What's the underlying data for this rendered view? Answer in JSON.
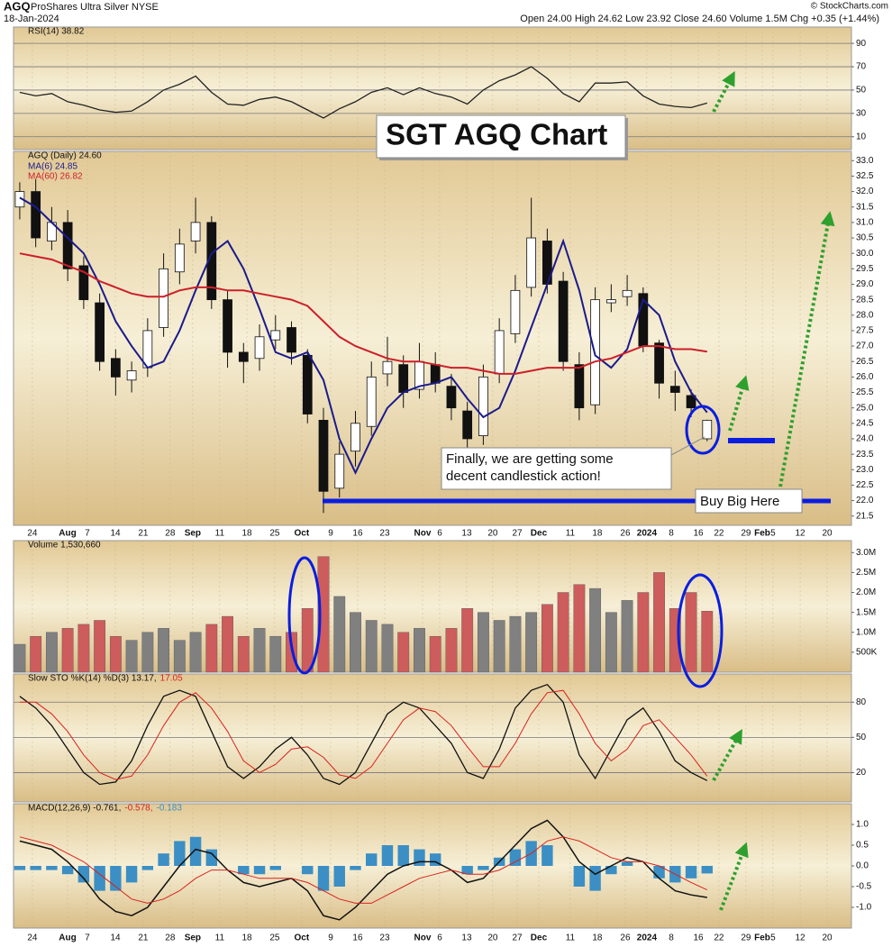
{
  "header": {
    "symbol": "AGQ",
    "name": "ProShares Ultra Silver NYSE",
    "date": "18-Jan-2024",
    "quote": "Open 24.00  High 24.62  Low 23.92  Close 24.60  Volume 1.5M  Chg +0.35 (+1.44%)",
    "credit": "© StockCharts.com"
  },
  "annotations": {
    "box_title": "SGT AGQ Chart",
    "note": [
      "Finally, we are getting some",
      "decent candlestick action!"
    ],
    "buy": "Buy Big Here"
  },
  "chart_data": [
    {
      "type": "line",
      "title": "RSI(14) 38.82",
      "grid": true,
      "ylim": [
        -1,
        104
      ],
      "yticks": [
        10,
        30,
        50,
        70,
        90
      ],
      "series": [
        {
          "color": "#222222",
          "values": [
            48,
            45,
            47,
            40,
            37,
            33,
            31,
            32,
            40,
            50,
            55,
            62,
            48,
            38,
            37,
            42,
            44,
            40,
            33,
            26,
            34,
            40,
            48,
            52,
            46,
            52,
            47,
            44,
            38,
            50,
            58,
            63,
            70,
            60,
            47,
            40,
            56,
            56,
            57,
            45,
            38,
            36,
            35,
            38.82
          ]
        }
      ]
    },
    {
      "type": "candlestick",
      "title": "AGQ (Daily) 24.60",
      "up_color": "#ffffff",
      "down_color": "#111111",
      "open": [
        31.5,
        32.0,
        30.4,
        31.0,
        29.6,
        28.4,
        26.6,
        25.9,
        26.3,
        27.6,
        29.4,
        30.4,
        31.0,
        28.5,
        26.8,
        26.6,
        27.2,
        27.6,
        26.7,
        24.6,
        22.4,
        23.6,
        24.4,
        26.1,
        26.4,
        25.6,
        26.4,
        25.7,
        24.9,
        24.1,
        26.1,
        27.4,
        28.9,
        30.4,
        29.1,
        26.4,
        25.1,
        28.4,
        28.6,
        28.7,
        27.1,
        25.7,
        25.4,
        24.0
      ],
      "high": [
        32.3,
        32.4,
        31.5,
        31.4,
        29.9,
        28.7,
        26.9,
        26.5,
        27.9,
        30.0,
        30.8,
        31.8,
        31.2,
        28.8,
        27.1,
        27.7,
        28.0,
        27.8,
        26.9,
        25.0,
        23.9,
        24.9,
        26.5,
        27.3,
        26.7,
        27.1,
        26.8,
        26.1,
        25.2,
        26.4,
        27.9,
        29.3,
        31.8,
        30.8,
        29.4,
        26.8,
        28.9,
        29.0,
        29.3,
        28.9,
        27.2,
        26.2,
        25.6,
        24.62
      ],
      "low": [
        31.1,
        30.2,
        30.1,
        29.1,
        28.2,
        26.2,
        25.4,
        25.5,
        26.0,
        27.3,
        29.0,
        30.0,
        28.2,
        26.3,
        25.8,
        26.2,
        26.9,
        26.4,
        24.5,
        21.6,
        22.1,
        23.1,
        24.1,
        25.7,
        25.0,
        25.3,
        25.5,
        24.6,
        23.6,
        23.8,
        25.8,
        27.1,
        28.6,
        28.7,
        26.2,
        24.6,
        24.8,
        28.1,
        28.3,
        26.8,
        25.3,
        24.9,
        24.7,
        23.92
      ],
      "close": [
        32.0,
        30.5,
        31.0,
        29.5,
        28.5,
        26.5,
        26.0,
        26.2,
        27.5,
        29.5,
        30.3,
        31.0,
        28.5,
        26.8,
        26.5,
        27.3,
        27.5,
        26.8,
        24.8,
        22.3,
        23.5,
        24.5,
        26.0,
        26.5,
        25.5,
        26.5,
        25.8,
        25.0,
        24.0,
        26.0,
        27.5,
        28.8,
        30.5,
        29.0,
        26.5,
        25.0,
        28.5,
        28.5,
        28.8,
        27.0,
        25.8,
        25.5,
        25.0,
        24.6
      ],
      "series": [
        {
          "name": "MA(6) 24.85",
          "color": "#1a1a8c",
          "values": [
            31.8,
            31.5,
            31.0,
            30.5,
            30.0,
            29.0,
            27.8,
            27.0,
            26.3,
            26.5,
            27.5,
            28.8,
            30.0,
            30.4,
            29.5,
            28.2,
            26.8,
            26.6,
            26.8,
            25.9,
            24.0,
            22.9,
            24.0,
            25.0,
            25.5,
            25.7,
            25.8,
            26.0,
            25.3,
            24.7,
            25.0,
            26.2,
            27.6,
            29.0,
            30.4,
            28.8,
            26.7,
            26.3,
            26.9,
            28.5,
            28.0,
            26.5,
            25.5,
            24.85
          ]
        },
        {
          "name": "MA(60) 26.82",
          "color": "#cc1f2a",
          "values": [
            30.0,
            29.9,
            29.8,
            29.6,
            29.4,
            29.1,
            28.9,
            28.7,
            28.6,
            28.6,
            28.8,
            28.9,
            28.9,
            28.8,
            28.8,
            28.7,
            28.6,
            28.5,
            28.3,
            27.8,
            27.3,
            27.0,
            26.8,
            26.6,
            26.5,
            26.5,
            26.4,
            26.3,
            26.3,
            26.2,
            26.1,
            26.1,
            26.2,
            26.3,
            26.3,
            26.3,
            26.5,
            26.6,
            26.8,
            27.0,
            27.0,
            26.9,
            26.9,
            26.82
          ]
        }
      ],
      "ylim": [
        21.2,
        33.3
      ],
      "yticks": [
        21.5,
        {
          "value": 22,
          "label": "22.0"
        },
        22.5,
        {
          "value": 23,
          "label": "23.0"
        },
        23.5,
        {
          "value": 24,
          "label": "24.0"
        },
        24.5,
        {
          "value": 25,
          "label": "25.0"
        },
        25.5,
        {
          "value": 26,
          "label": "26.0"
        },
        26.5,
        {
          "value": 27,
          "label": "27.0"
        },
        27.5,
        {
          "value": 28,
          "label": "28.0"
        },
        28.5,
        {
          "value": 29,
          "label": "29.0"
        },
        29.5,
        {
          "value": 30,
          "label": "30.0"
        },
        30.5,
        {
          "value": 31,
          "label": "31.0"
        },
        31.5,
        {
          "value": 32,
          "label": "32.0"
        },
        32.5,
        {
          "value": 33,
          "label": "33.0"
        }
      ],
      "xlim": [
        -0.39,
        52.03
      ],
      "xticks": [
        {
          "value": 0.79,
          "label": "24"
        },
        {
          "value": 2.99,
          "label": "Aug"
        },
        {
          "value": 4.23,
          "label": "7"
        },
        {
          "value": 5.98,
          "label": "14"
        },
        {
          "value": 7.72,
          "label": "21"
        },
        {
          "value": 9.41,
          "label": "28"
        },
        {
          "value": 10.82,
          "label": "Sep"
        },
        {
          "value": 12.51,
          "label": "11"
        },
        {
          "value": 14.21,
          "label": "18"
        },
        {
          "value": 15.95,
          "label": "25"
        },
        {
          "value": 17.64,
          "label": "Oct"
        },
        {
          "value": 19.45,
          "label": "9"
        },
        {
          "value": 21.14,
          "label": "16"
        },
        {
          "value": 22.83,
          "label": "23"
        },
        {
          "value": 25.2,
          "label": "Nov"
        },
        {
          "value": 26.27,
          "label": "6"
        },
        {
          "value": 27.96,
          "label": "13"
        },
        {
          "value": 29.59,
          "label": "20"
        },
        {
          "value": 31.12,
          "label": "27"
        },
        {
          "value": 32.47,
          "label": "Dec"
        },
        {
          "value": 34.44,
          "label": "11"
        },
        {
          "value": 36.13,
          "label": "18"
        },
        {
          "value": 37.88,
          "label": "26"
        },
        {
          "value": 39.23,
          "label": "2024"
        },
        {
          "value": 40.76,
          "label": "8"
        },
        {
          "value": 42.45,
          "label": "16"
        },
        {
          "value": 43.74,
          "label": "22"
        },
        {
          "value": 45.43,
          "label": "29"
        },
        {
          "value": 46.45,
          "label": "Feb"
        },
        {
          "value": 47.12,
          "label": "5"
        },
        {
          "value": 48.82,
          "label": "12"
        },
        {
          "value": 50.51,
          "label": "20"
        }
      ]
    },
    {
      "type": "bar",
      "title": "Volume 1,530,660",
      "up_color": "#808080",
      "down_color": "#cd5c5c",
      "ylim": [
        0,
        3300000
      ],
      "yticks": [
        {
          "value": 500000,
          "label": "500K"
        },
        {
          "value": 1000000,
          "label": "1.0M"
        },
        {
          "value": 1500000,
          "label": "1.5M"
        },
        {
          "value": 2000000,
          "label": "2.0M"
        },
        {
          "value": 2500000,
          "label": "2.5M"
        },
        {
          "value": 3000000,
          "label": "3.0M"
        }
      ],
      "values": [
        700000,
        900000,
        1000000,
        1100000,
        1200000,
        1300000,
        900000,
        800000,
        1000000,
        1100000,
        800000,
        1000000,
        1200000,
        1400000,
        900000,
        1100000,
        900000,
        1000000,
        1600000,
        2900000,
        1900000,
        1500000,
        1300000,
        1200000,
        1000000,
        1100000,
        900000,
        1100000,
        1600000,
        1500000,
        1300000,
        1400000,
        1500000,
        1700000,
        2000000,
        2200000,
        2100000,
        1500000,
        1800000,
        2000000,
        2500000,
        1600000,
        2000000,
        1530660
      ]
    },
    {
      "type": "line",
      "title": "Slow STO %K(14) %D(3) 13.17,",
      "title_extra": "17.05",
      "grid": true,
      "ylim": [
        -5,
        104
      ],
      "yticks": [
        20,
        50,
        80
      ],
      "series": [
        {
          "color": "#111111",
          "values": [
            85,
            75,
            60,
            40,
            20,
            10,
            12,
            30,
            60,
            85,
            90,
            85,
            55,
            25,
            15,
            25,
            40,
            50,
            35,
            15,
            10,
            20,
            45,
            70,
            80,
            75,
            60,
            45,
            20,
            15,
            40,
            75,
            90,
            95,
            80,
            35,
            15,
            40,
            65,
            75,
            55,
            30,
            20,
            13.17
          ]
        },
        {
          "color": "#d8231f",
          "values": [
            80,
            80,
            70,
            55,
            35,
            20,
            14,
            17,
            35,
            60,
            80,
            88,
            75,
            55,
            30,
            20,
            27,
            40,
            42,
            33,
            18,
            15,
            25,
            45,
            65,
            75,
            72,
            60,
            42,
            25,
            25,
            45,
            70,
            88,
            90,
            70,
            45,
            30,
            40,
            60,
            65,
            50,
            35,
            17.05
          ]
        }
      ]
    },
    {
      "type": "macd",
      "title": "MACD(12,26,9) -0.761,",
      "title_signal": "-0.578,",
      "title_hist": "-0.183",
      "ylim": [
        -1.5,
        1.5
      ],
      "yticks": [
        {
          "value": -1,
          "label": "-1.0"
        },
        -0.5,
        {
          "value": 0,
          "label": "0.0"
        },
        0.5,
        {
          "value": 1,
          "label": "1.0"
        }
      ],
      "histogram": {
        "color": "#3b8fc4",
        "values": [
          -0.1,
          -0.1,
          -0.1,
          -0.2,
          -0.4,
          -0.6,
          -0.6,
          -0.4,
          -0.1,
          0.3,
          0.6,
          0.7,
          0.4,
          0,
          -0.2,
          -0.2,
          -0.1,
          0,
          -0.2,
          -0.6,
          -0.5,
          -0.1,
          0.3,
          0.5,
          0.5,
          0.4,
          0.3,
          0,
          -0.2,
          -0.1,
          0.2,
          0.4,
          0.6,
          0.5,
          0,
          -0.5,
          -0.6,
          -0.2,
          0.1,
          0,
          -0.3,
          -0.4,
          -0.3,
          -0.183
        ]
      },
      "series": [
        {
          "color": "#111111",
          "values": [
            0.6,
            0.5,
            0.4,
            0.1,
            -0.3,
            -0.8,
            -1.1,
            -1.2,
            -1.0,
            -0.5,
            0,
            0.4,
            0.3,
            -0.1,
            -0.4,
            -0.5,
            -0.4,
            -0.3,
            -0.6,
            -1.2,
            -1.3,
            -1.0,
            -0.6,
            -0.2,
            0,
            0.1,
            0.1,
            -0.1,
            -0.4,
            -0.3,
            0.1,
            0.5,
            0.9,
            1.1,
            0.7,
            0.1,
            -0.2,
            0,
            0.2,
            0.1,
            -0.3,
            -0.6,
            -0.7,
            -0.761
          ]
        },
        {
          "color": "#d8231f",
          "values": [
            0.7,
            0.6,
            0.5,
            0.3,
            0.1,
            -0.2,
            -0.5,
            -0.8,
            -0.9,
            -0.8,
            -0.6,
            -0.3,
            -0.1,
            -0.1,
            -0.2,
            -0.3,
            -0.3,
            -0.3,
            -0.4,
            -0.6,
            -0.8,
            -0.9,
            -0.9,
            -0.7,
            -0.5,
            -0.3,
            -0.2,
            -0.1,
            -0.2,
            -0.2,
            -0.1,
            0.1,
            0.3,
            0.6,
            0.7,
            0.6,
            0.4,
            0.2,
            0.1,
            0.1,
            0,
            -0.2,
            -0.4,
            -0.578
          ]
        }
      ]
    }
  ]
}
